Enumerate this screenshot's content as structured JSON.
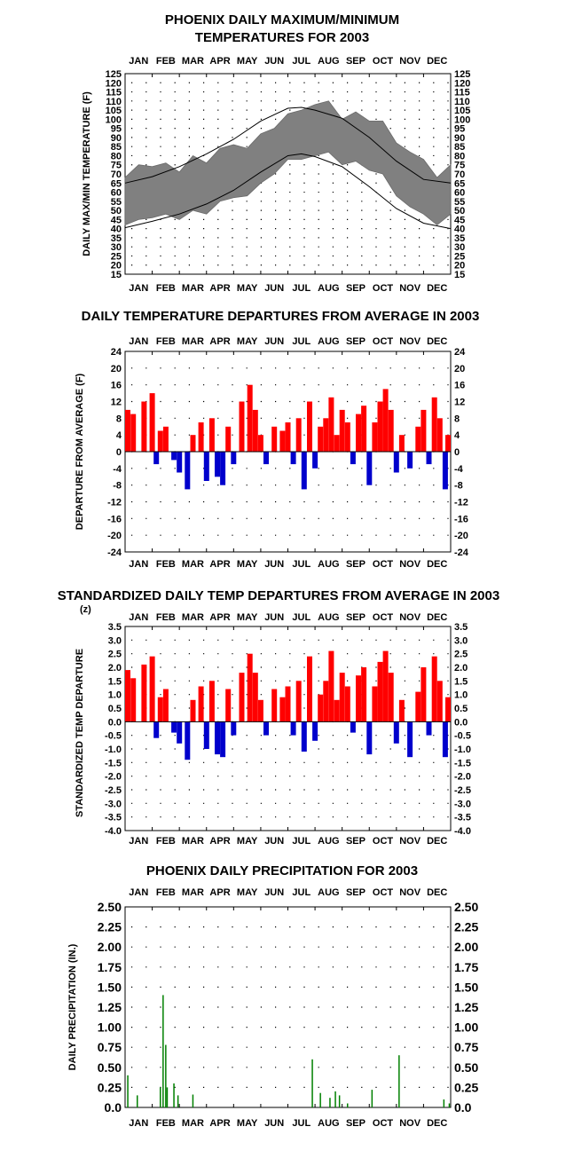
{
  "months": [
    "JAN",
    "FEB",
    "MAR",
    "APR",
    "MAY",
    "JUN",
    "JUL",
    "AUG",
    "SEP",
    "OCT",
    "NOV",
    "DEC"
  ],
  "chart_data": [
    {
      "type": "line",
      "title_lines": [
        "PHOENIX DAILY MAXIMUM/MINIMUM",
        "TEMPERATURES FOR 2003"
      ],
      "ylabel": "DAILY MAX/MIN TEMPERATURE (F)",
      "ylim": [
        15,
        125
      ],
      "yticks": [
        15,
        20,
        25,
        30,
        35,
        40,
        45,
        50,
        55,
        60,
        65,
        70,
        75,
        80,
        85,
        90,
        95,
        100,
        105,
        110,
        115,
        120,
        125
      ],
      "grid": "dotted",
      "x_unit": "month of 2003",
      "series": [
        {
          "role": "observed daily max/min range band",
          "x": [
            0,
            0.5,
            1,
            1.5,
            2,
            2.5,
            3,
            3.5,
            4,
            4.5,
            5,
            5.5,
            6,
            6.5,
            7,
            7.5,
            8,
            8.5,
            9,
            9.5,
            10,
            10.5,
            11,
            11.5,
            12
          ],
          "max": [
            68,
            75,
            74,
            76,
            71,
            80,
            76,
            84,
            86,
            84,
            92,
            95,
            103,
            105,
            108,
            110,
            100,
            104,
            99,
            99,
            87,
            82,
            78,
            68,
            75
          ],
          "min": [
            42,
            45,
            46,
            48,
            45,
            50,
            48,
            55,
            57,
            58,
            65,
            70,
            78,
            78,
            80,
            82,
            75,
            77,
            72,
            70,
            58,
            52,
            48,
            42,
            48
          ]
        },
        {
          "role": "normal max",
          "x": [
            0,
            1,
            2,
            3,
            4,
            5,
            6,
            6.5,
            7,
            8,
            9,
            10,
            11,
            12
          ],
          "values": [
            65,
            68.5,
            74,
            81,
            89,
            99,
            106,
            106.5,
            105,
            100.5,
            90,
            77,
            67,
            65
          ]
        },
        {
          "role": "normal min",
          "x": [
            0,
            1,
            2,
            3,
            4,
            5,
            6,
            6.5,
            7,
            8,
            9,
            10,
            11,
            12
          ],
          "values": [
            40.5,
            44,
            48,
            53.5,
            61,
            71,
            80,
            81,
            79.5,
            74,
            63,
            51,
            43,
            40
          ]
        }
      ]
    },
    {
      "type": "bar",
      "title": "DAILY TEMPERATURE DEPARTURES FROM AVERAGE IN 2003",
      "ylabel": "DEPARTURE FROM AVERAGE (F)",
      "ylim": [
        -24,
        24
      ],
      "yticks": [
        24,
        20,
        16,
        12,
        8,
        4,
        0,
        -4,
        -8,
        -12,
        -16,
        -20,
        -24
      ],
      "grid": "dotted",
      "x_unit": "month of 2003",
      "x": [
        0,
        0.3,
        0.7,
        1,
        1.15,
        1.3,
        1.5,
        1.8,
        2,
        2.3,
        2.5,
        2.8,
        3,
        3.2,
        3.4,
        3.6,
        3.8,
        4,
        4.3,
        4.6,
        4.8,
        5,
        5.2,
        5.5,
        5.8,
        6,
        6.2,
        6.4,
        6.6,
        6.8,
        7,
        7.2,
        7.4,
        7.6,
        7.8,
        8,
        8.2,
        8.4,
        8.6,
        8.8,
        9,
        9.2,
        9.4,
        9.6,
        9.8,
        10,
        10.2,
        10.5,
        10.8,
        11,
        11.2,
        11.4,
        11.6,
        11.8,
        12
      ],
      "values": [
        10,
        9,
        12,
        14,
        -3,
        5,
        6,
        -2,
        -5,
        -9,
        4,
        7,
        -7,
        8,
        -6,
        -8,
        6,
        -3,
        12,
        16,
        10,
        4,
        -3,
        6,
        5,
        7,
        -3,
        8,
        -9,
        12,
        -4,
        6,
        8,
        13,
        4,
        10,
        7,
        -3,
        9,
        11,
        -8,
        7,
        12,
        15,
        10,
        -5,
        4,
        -4,
        6,
        10,
        -3,
        13,
        8,
        -9,
        4
      ],
      "colors": {
        "positive": "#ff0000",
        "negative": "#0000cc"
      }
    },
    {
      "type": "bar",
      "title": "STANDARDIZED DAILY TEMP DEPARTURES FROM AVERAGE IN 2003",
      "ylabel": "STANDARDIZED TEMP DEPARTURE",
      "ylabel_unit": "(z)",
      "ylim": [
        -4.0,
        3.5
      ],
      "yticks": [
        "3.5",
        "3.0",
        "2.5",
        "2.0",
        "1.5",
        "1.0",
        "0.5",
        "0.0",
        "-0.5",
        "-1.0",
        "-1.5",
        "-2.0",
        "-2.5",
        "-3.0",
        "-3.5",
        "-4.0"
      ],
      "grid": "dotted",
      "x_unit": "month of 2003",
      "x": [
        0,
        0.3,
        0.7,
        1,
        1.15,
        1.3,
        1.5,
        1.8,
        2,
        2.3,
        2.5,
        2.8,
        3,
        3.2,
        3.4,
        3.6,
        3.8,
        4,
        4.3,
        4.6,
        4.8,
        5,
        5.2,
        5.5,
        5.8,
        6,
        6.2,
        6.4,
        6.6,
        6.8,
        7,
        7.2,
        7.4,
        7.6,
        7.8,
        8,
        8.2,
        8.4,
        8.6,
        8.8,
        9,
        9.2,
        9.4,
        9.6,
        9.8,
        10,
        10.2,
        10.5,
        10.8,
        11,
        11.2,
        11.4,
        11.6,
        11.8,
        12
      ],
      "values": [
        1.9,
        1.6,
        2.1,
        2.4,
        -0.6,
        0.9,
        1.2,
        -0.4,
        -0.8,
        -1.4,
        0.8,
        1.3,
        -1.0,
        1.5,
        -1.2,
        -1.3,
        1.2,
        -0.5,
        1.8,
        2.5,
        1.8,
        0.8,
        -0.5,
        1.2,
        0.9,
        1.3,
        -0.5,
        1.5,
        -1.1,
        2.4,
        -0.7,
        1.0,
        1.5,
        2.6,
        0.8,
        1.8,
        1.3,
        -0.4,
        1.7,
        2.0,
        -1.2,
        1.3,
        2.2,
        2.6,
        1.8,
        -0.8,
        0.8,
        -1.3,
        1.1,
        2.0,
        -0.5,
        2.4,
        1.5,
        -1.3,
        0.9
      ],
      "colors": {
        "positive": "#ff0000",
        "negative": "#0000cc"
      }
    },
    {
      "type": "bar",
      "title": "PHOENIX DAILY PRECIPITATION FOR 2003",
      "ylabel": "DAILY PRECIPITATION (IN.)",
      "ylim": [
        0,
        2.5
      ],
      "yticks": [
        "2.50",
        "2.25",
        "2.00",
        "1.75",
        "1.50",
        "1.25",
        "1.00",
        "0.75",
        "0.50",
        "0.25",
        "0.0"
      ],
      "grid": "dotted",
      "x_unit": "month of 2003",
      "x": [
        0.1,
        0.45,
        1.3,
        1.4,
        1.5,
        1.55,
        1.8,
        1.95,
        2.5,
        6.9,
        7.2,
        7.55,
        7.75,
        7.9,
        8.2,
        9.1,
        10.1,
        11.75,
        11.95
      ],
      "values": [
        0.4,
        0.15,
        0.25,
        1.4,
        0.78,
        0.25,
        0.3,
        0.15,
        0.16,
        0.6,
        0.18,
        0.12,
        0.2,
        0.15,
        0.05,
        0.22,
        0.65,
        0.1,
        0.05
      ],
      "colors": {
        "bar": "#008000"
      }
    }
  ]
}
